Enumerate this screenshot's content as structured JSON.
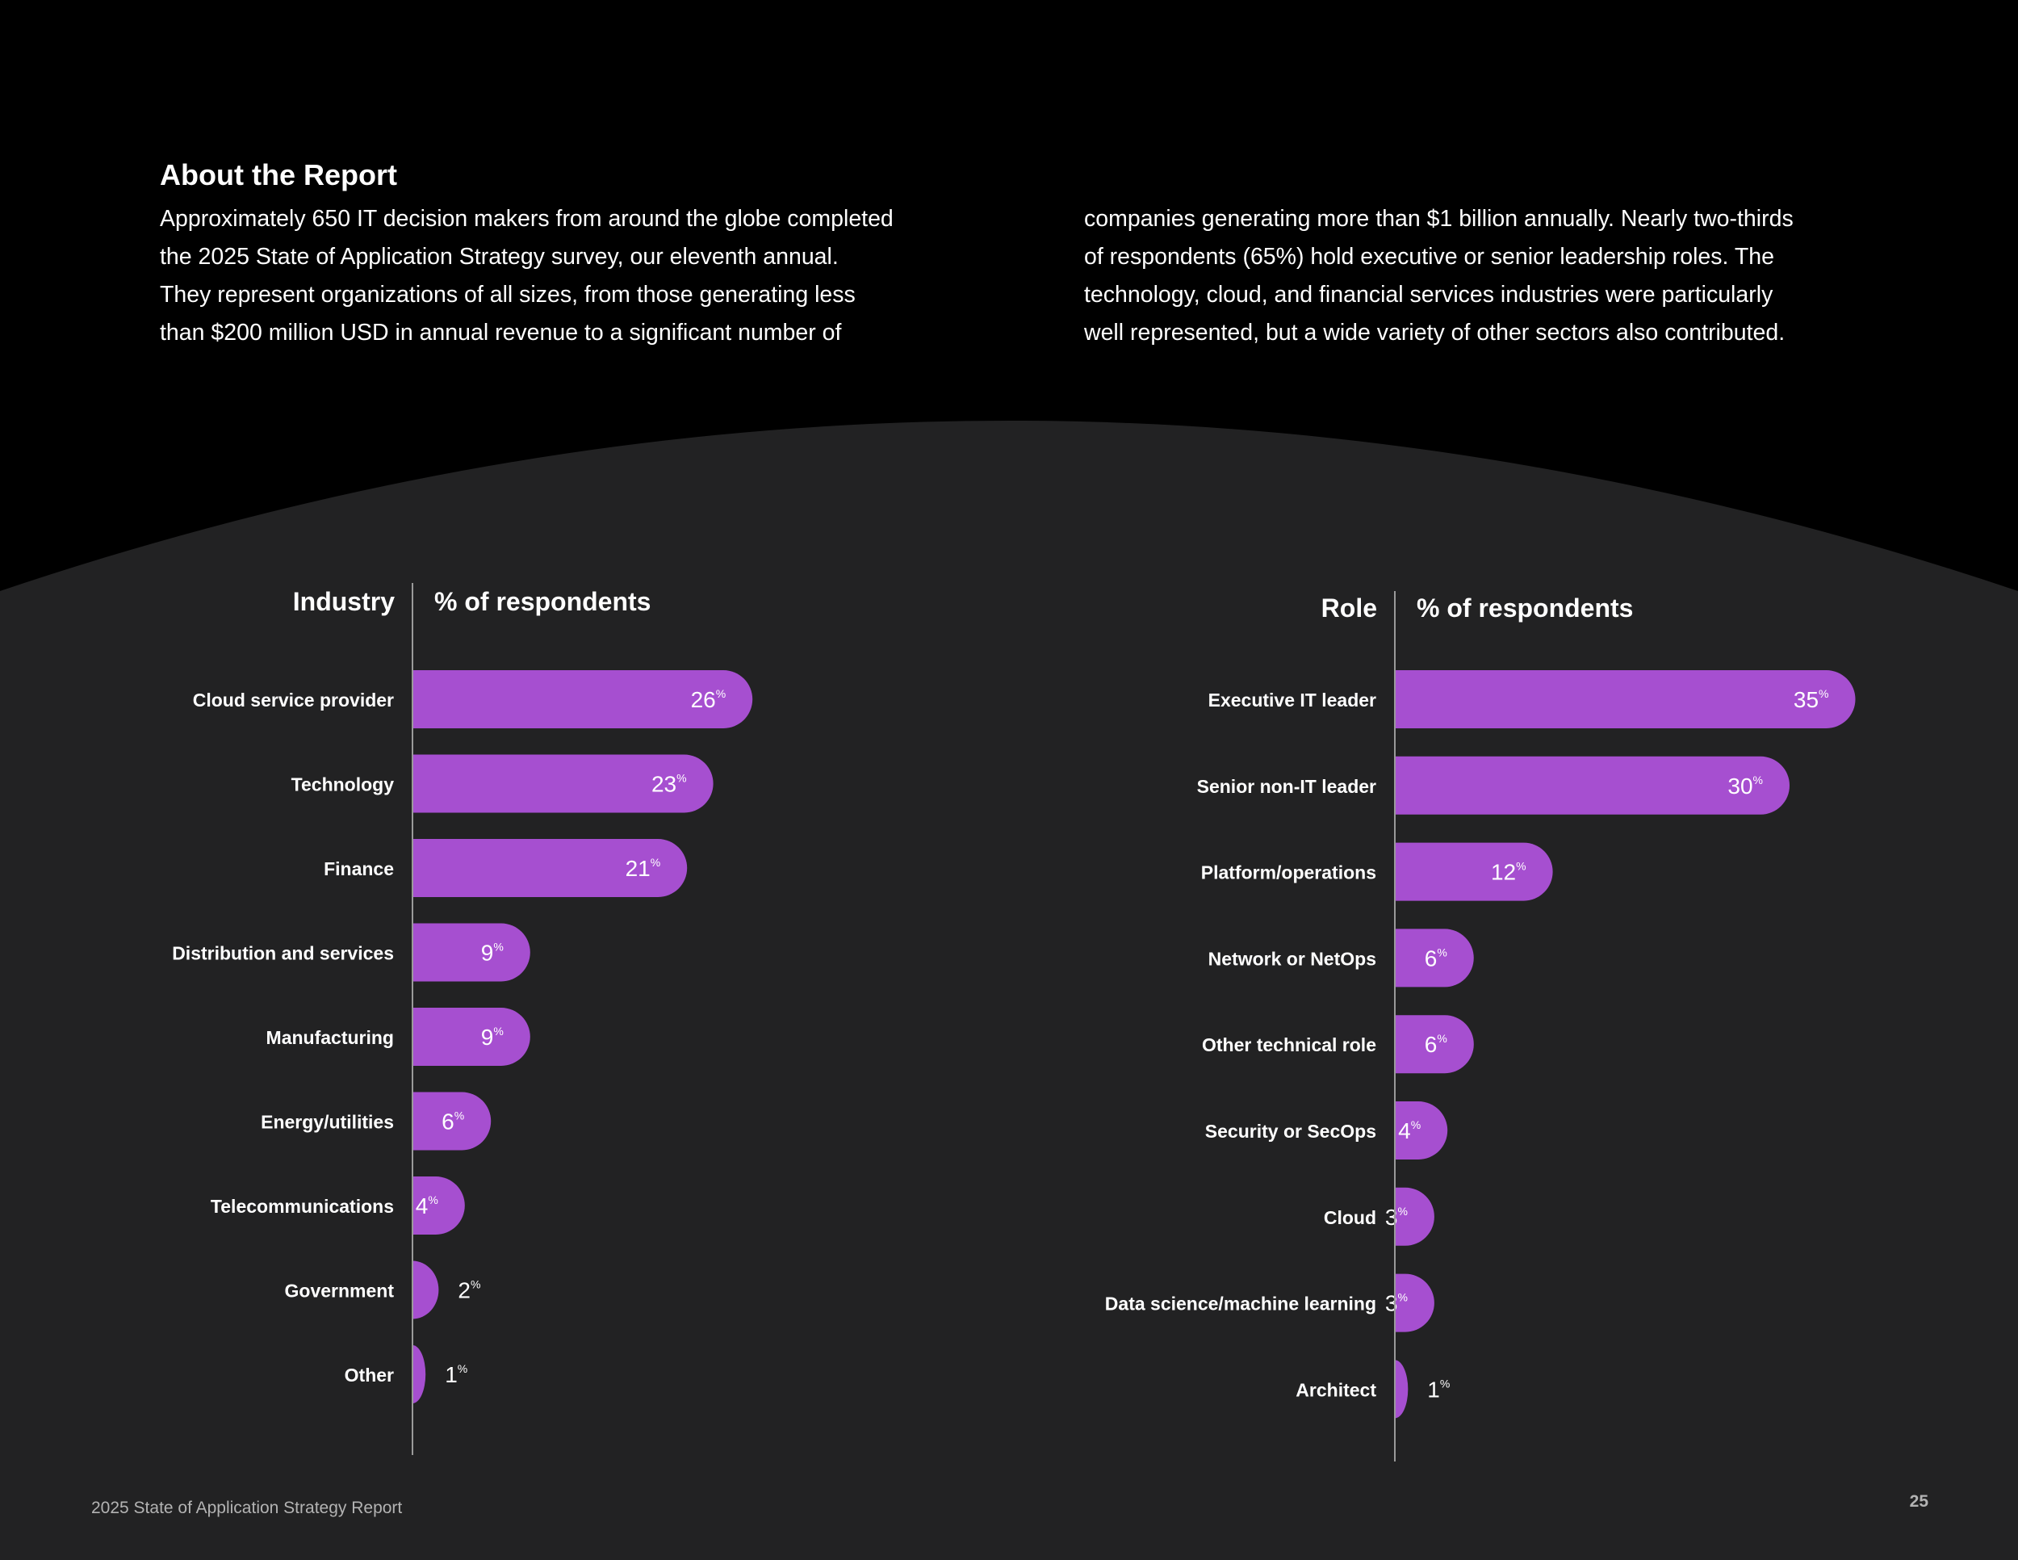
{
  "about": {
    "title": "About the Report",
    "left_lines": [
      "Approximately 650 IT decision makers from around the globe completed",
      "the 2025 State of Application Strategy survey, our eleventh annual.",
      "They represent organizations of all sizes, from those generating less",
      "than $200 million USD in annual revenue to a significant number of"
    ],
    "right_lines": [
      "companies generating more than $1 billion annually. Nearly two-thirds",
      "of respondents (65%) hold executive or senior leadership roles. The",
      "technology, cloud, and financial services industries were particularly",
      "well represented, but a wide variety of other sectors also contributed."
    ]
  },
  "colors": {
    "bar": "#a64fd0",
    "panel": "#222223",
    "page": "#000000",
    "axis": "#9a9a9a"
  },
  "chart_data": [
    {
      "type": "bar",
      "orientation": "horizontal",
      "category_header": "Industry",
      "value_header": "% of respondents",
      "unit": "%",
      "categories": [
        "Cloud service provider",
        "Technology",
        "Finance",
        "Distribution and services",
        "Manufacturing",
        "Energy/utilities",
        "Telecommunications",
        "Government",
        "Other"
      ],
      "values": [
        26,
        23,
        21,
        9,
        9,
        6,
        4,
        2,
        1
      ]
    },
    {
      "type": "bar",
      "orientation": "horizontal",
      "category_header": "Role",
      "value_header": "% of respondents",
      "unit": "%",
      "categories": [
        "Executive IT leader",
        "Senior non-IT leader",
        "Platform/operations",
        "Network or NetOps",
        "Other technical role",
        "Security or SecOps",
        "Cloud",
        "Data science/machine learning",
        "Architect"
      ],
      "values": [
        35,
        30,
        12,
        6,
        6,
        4,
        3,
        3,
        1
      ]
    }
  ],
  "footer": {
    "report_name": "2025 State of Application Strategy Report",
    "page_number": "25"
  }
}
